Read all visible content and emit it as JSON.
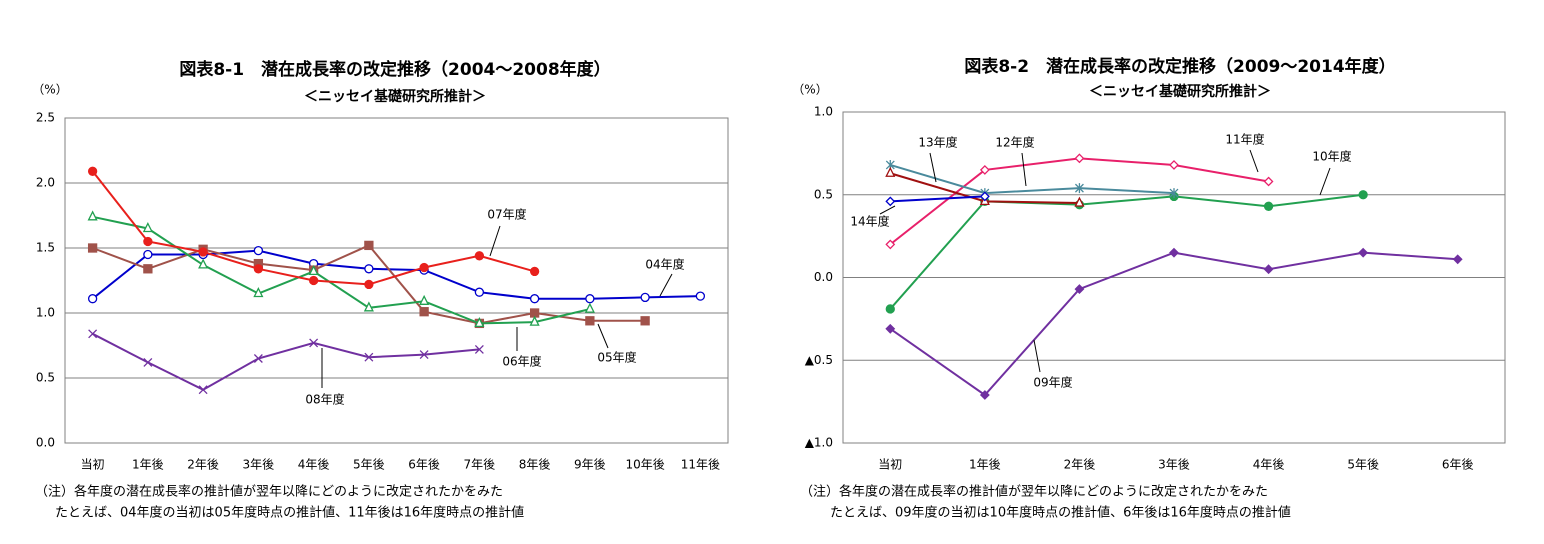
{
  "chart_data": [
    {
      "type": "line",
      "title": "図表8-1　潜在成長率の改定推移（2004～2008年度）",
      "subtitle": "＜ニッセイ基礎研究所推計＞",
      "y_unit": "（%）",
      "categories": [
        "当初",
        "1年後",
        "2年後",
        "3年後",
        "4年後",
        "5年後",
        "6年後",
        "7年後",
        "8年後",
        "9年後",
        "10年後",
        "11年後"
      ],
      "ylim": [
        0,
        2.5
      ],
      "yticks": [
        {
          "value": 0,
          "label": "0.0"
        },
        0.5,
        {
          "value": 1,
          "label": "1.0"
        },
        1.5,
        {
          "value": 2,
          "label": "2.0"
        },
        2.5
      ],
      "grid": true,
      "series": [
        {
          "name": "04年度",
          "color": "#0000cc",
          "marker": "circle-open",
          "values": [
            1.11,
            1.45,
            1.45,
            1.48,
            1.38,
            1.34,
            1.33,
            1.16,
            1.11,
            1.11,
            1.12,
            1.13
          ]
        },
        {
          "name": "05年度",
          "color": "#a0524a",
          "marker": "square",
          "values": [
            1.5,
            1.34,
            1.49,
            1.38,
            1.33,
            1.52,
            1.01,
            0.92,
            1.0,
            0.94,
            0.94,
            null
          ]
        },
        {
          "name": "06年度",
          "color": "#22a050",
          "marker": "triangle-open",
          "values": [
            1.74,
            1.65,
            1.37,
            1.15,
            1.32,
            1.04,
            1.09,
            0.92,
            0.93,
            1.03,
            null,
            null
          ]
        },
        {
          "name": "07年度",
          "color": "#e8201c",
          "marker": "circle-filled",
          "values": [
            2.09,
            1.55,
            1.47,
            1.34,
            1.25,
            1.22,
            1.35,
            1.44,
            1.32,
            null,
            null,
            null
          ]
        },
        {
          "name": "08年度",
          "color": "#7030a0",
          "marker": "x",
          "values": [
            0.84,
            0.62,
            0.41,
            0.65,
            0.77,
            0.66,
            0.68,
            0.72,
            null,
            null,
            null,
            null
          ]
        }
      ],
      "notes": [
        "（注）各年度の潜在成長率の推計値が翌年以降にどのように改定されたかをみた",
        "たとえば、04年度の当初は05年度時点の推計値、11年後は16年度時点の推計値"
      ]
    },
    {
      "type": "line",
      "title": "図表8-2　潜在成長率の改定推移（2009～2014年度）",
      "subtitle": "＜ニッセイ基礎研究所推計＞",
      "y_unit": "（%）",
      "categories": [
        "当初",
        "1年後",
        "2年後",
        "3年後",
        "4年後",
        "5年後",
        "6年後"
      ],
      "ylim": [
        -1,
        1
      ],
      "yticks": [
        {
          "value": -1,
          "label": "▲1.0"
        },
        {
          "value": -0.5,
          "label": "▲0.5"
        },
        {
          "value": 0,
          "label": "0.0"
        },
        0.5,
        {
          "value": 1,
          "label": "1.0"
        }
      ],
      "grid": true,
      "series": [
        {
          "name": "09年度",
          "color": "#7030a0",
          "marker": "diamond-filled",
          "values": [
            -0.31,
            -0.71,
            -0.07,
            0.15,
            0.05,
            0.15,
            0.11
          ]
        },
        {
          "name": "10年度",
          "color": "#22a050",
          "marker": "circle-filled",
          "values": [
            -0.19,
            0.46,
            0.44,
            0.49,
            0.43,
            0.5,
            null
          ]
        },
        {
          "name": "11年度",
          "color": "#e8206a",
          "marker": "diamond-open",
          "values": [
            0.2,
            0.65,
            0.72,
            0.68,
            0.58,
            null,
            null
          ]
        },
        {
          "name": "12年度",
          "color": "#4a8a9c",
          "marker": "asterisk",
          "values": [
            0.68,
            0.51,
            0.54,
            0.51,
            null,
            null,
            null
          ]
        },
        {
          "name": "13年度",
          "color": "#a01010",
          "marker": "triangle-open",
          "values": [
            0.63,
            0.46,
            0.45,
            null,
            null,
            null,
            null
          ]
        },
        {
          "name": "14年度",
          "color": "#0000cc",
          "marker": "diamond-open",
          "values": [
            0.46,
            0.49,
            null,
            null,
            null,
            null,
            null
          ]
        }
      ],
      "notes": [
        "（注）各年度の潜在成長率の推計値が翌年以降にどのように改定されたかをみた",
        "たとえば、09年度の当初は10年度時点の推計値、6年後は16年度時点の推計値"
      ]
    }
  ]
}
